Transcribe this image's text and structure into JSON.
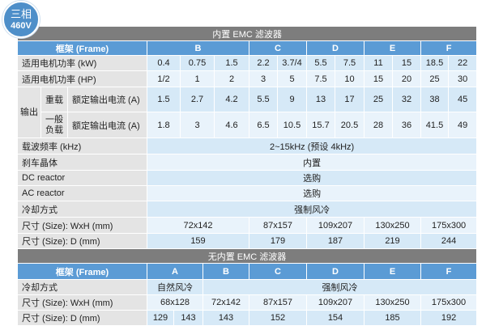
{
  "badge": {
    "phase": "三相",
    "voltage": "460V"
  },
  "builtin": {
    "title": "内置 EMC 滤波器",
    "frame_label": "框架 (Frame)",
    "frames": [
      "B",
      "C",
      "D",
      "E",
      "F"
    ],
    "kw_label": "适用电机功率 (kW)",
    "kw": [
      "0.4",
      "0.75",
      "1.5",
      "2.2",
      "3.7/4",
      "5.5",
      "7.5",
      "11",
      "15",
      "18.5",
      "22"
    ],
    "hp_label": "适用电机功率 (HP)",
    "hp": [
      "1/2",
      "1",
      "2",
      "3",
      "5",
      "7.5",
      "10",
      "15",
      "20",
      "25",
      "30"
    ],
    "output_label": "输出",
    "heavy_label": "重载",
    "normal_label": "一般负载",
    "current_label": "额定输出电流 (A)",
    "heavy": [
      "1.5",
      "2.7",
      "4.2",
      "5.5",
      "9",
      "13",
      "17",
      "25",
      "32",
      "38",
      "45"
    ],
    "normal": [
      "1.8",
      "3",
      "4.6",
      "6.5",
      "10.5",
      "15.7",
      "20.5",
      "28",
      "36",
      "41.5",
      "49"
    ],
    "carrier_label": "载波频率 (kHz)",
    "carrier": "2~15kHz (预设 4kHz)",
    "brake_label": "刹车晶体",
    "brake": "内置",
    "dc_label": "DC reactor",
    "dc": "选购",
    "ac_label": "AC reactor",
    "ac": "选购",
    "cooling_label": "冷却方式",
    "cooling": "强制风冷",
    "wxh_label": "尺寸 (Size): WxH (mm)",
    "wxh": [
      "72x142",
      "87x157",
      "109x207",
      "130x250",
      "175x300"
    ],
    "d_label": "尺寸 (Size): D (mm)",
    "d": [
      "159",
      "179",
      "187",
      "219",
      "244"
    ]
  },
  "no_builtin": {
    "title": "无内置 EMC 滤波器",
    "frame_label": "框架 (Frame)",
    "frames": [
      "A",
      "B",
      "C",
      "D",
      "E",
      "F"
    ],
    "cooling_label": "冷却方式",
    "cooling_natural": "自然风冷",
    "cooling_forced": "强制风冷",
    "wxh_label": "尺寸 (Size): WxH (mm)",
    "wxh": [
      "68x128",
      "72x142",
      "87x157",
      "109x207",
      "130x250",
      "175x300"
    ],
    "d_label": "尺寸 (Size): D (mm)",
    "d": [
      "129",
      "143",
      "143",
      "152",
      "154",
      "185",
      "192"
    ]
  }
}
